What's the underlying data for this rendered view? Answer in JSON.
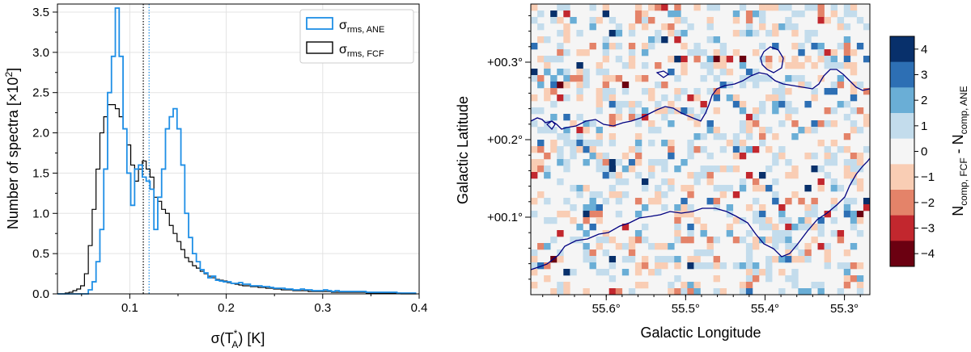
{
  "chart_data": [
    {
      "type": "histogram",
      "title": "",
      "xlabel": "σ(T",
      "xlabel_sub": "A",
      "xlabel_sup": "*",
      "xlabel_unit": ") [K]",
      "ylabel": "Number of spectra [×10",
      "ylabel_sup": "2",
      "ylabel_end": "]",
      "xlim": [
        0.025,
        0.4
      ],
      "ylim": [
        0,
        3.6
      ],
      "xticks": [
        0.1,
        0.2,
        0.3,
        0.4
      ],
      "xtick_labels": [
        "0.1",
        "0.2",
        "0.3",
        "0.4"
      ],
      "yticks": [
        0.0,
        0.5,
        1.0,
        1.5,
        2.0,
        2.5,
        3.0,
        3.5
      ],
      "ytick_labels": [
        "0.0",
        "0.5",
        "1.0",
        "1.5",
        "2.0",
        "2.5",
        "3.0",
        "3.5"
      ],
      "grid": true,
      "legend_position": "top-right",
      "series": [
        {
          "name": "σ",
          "name_sub": "rms, ANE",
          "color": "#1f8fe6",
          "step_start": 0.025,
          "step_width": 0.004,
          "values": [
            0,
            0,
            0,
            0,
            0,
            0,
            0,
            0,
            0.05,
            0.15,
            0.4,
            0.8,
            1.55,
            2.5,
            2.95,
            3.55,
            2.95,
            2.05,
            1.5,
            1.1,
            1.55,
            1.6,
            1.45,
            1.4,
            1.3,
            0.8,
            1.2,
            1.55,
            2.05,
            2.2,
            2.3,
            2.05,
            1.6,
            1.0,
            0.7,
            0.5,
            0.4,
            0.3,
            0.26,
            0.2,
            0.22,
            0.17,
            0.16,
            0.15,
            0.15,
            0.13,
            0.13,
            0.14,
            0.12,
            0.12,
            0.1,
            0.1,
            0.1,
            0.09,
            0.09,
            0.08,
            0.07,
            0.07,
            0.07,
            0.06,
            0.06,
            0.05,
            0.05,
            0.06,
            0.05,
            0.05,
            0.04,
            0.04,
            0.04,
            0.05,
            0.04,
            0.03,
            0.04,
            0.03,
            0.03,
            0.03,
            0.03,
            0.03,
            0.03,
            0.03,
            0.02,
            0.02,
            0.02,
            0.02,
            0.02,
            0.02,
            0.02,
            0.02,
            0.01,
            0.01,
            0.01,
            0.01,
            0.01
          ]
        },
        {
          "name": "σ",
          "name_sub": "rms, FCF",
          "color": "#000000",
          "step_start": 0.025,
          "step_width": 0.004,
          "values": [
            0,
            0,
            0.01,
            0.02,
            0.04,
            0.06,
            0.1,
            0.25,
            0.6,
            1.05,
            1.55,
            2.0,
            2.2,
            2.35,
            2.35,
            2.3,
            2.2,
            2.05,
            1.85,
            1.6,
            1.4,
            1.55,
            1.65,
            1.55,
            1.45,
            1.2,
            1.15,
            1.05,
            1.0,
            0.85,
            0.75,
            0.65,
            0.55,
            0.45,
            0.4,
            0.35,
            0.32,
            0.28,
            0.25,
            0.22,
            0.2,
            0.18,
            0.17,
            0.16,
            0.14,
            0.13,
            0.12,
            0.11,
            0.1,
            0.1,
            0.09,
            0.09,
            0.08,
            0.08,
            0.07,
            0.07,
            0.06,
            0.06,
            0.05,
            0.05,
            0.05,
            0.04,
            0.04,
            0.04,
            0.04,
            0.03,
            0.03,
            0.03,
            0.03,
            0.03,
            0.03,
            0.02,
            0.02,
            0.02,
            0.02,
            0.02,
            0.02,
            0.02,
            0.02,
            0.02,
            0.01,
            0.01,
            0.01,
            0.01,
            0.01,
            0.01,
            0.01,
            0.01,
            0.01,
            0.0,
            0.0,
            0.0,
            0.0
          ]
        }
      ],
      "vlines": [
        {
          "x": 0.114,
          "color": "#000000",
          "style": "dotted"
        },
        {
          "x": 0.12,
          "color": "#1f8fe6",
          "style": "dotted"
        }
      ]
    },
    {
      "type": "heatmap",
      "xlabel": "Galactic Longitude",
      "ylabel": "Galactic Latitude",
      "x_reversed": true,
      "xlim": [
        55.695,
        55.268
      ],
      "ylim": [
        0.0,
        0.375
      ],
      "xticks": [
        55.6,
        55.5,
        55.4,
        55.3
      ],
      "xtick_labels": [
        "55.6°",
        "55.5°",
        "55.4°",
        "55.3°"
      ],
      "yticks": [
        0.1,
        0.2,
        0.3
      ],
      "ytick_labels": [
        "+00.1°",
        "+00.2°",
        "+00.3°"
      ],
      "grid_size": [
        52,
        45
      ],
      "colorbar": {
        "label_main": "N",
        "label_sub1": "comp, FCF",
        "label_mid": " - N",
        "label_sub2": "comp, ANE",
        "ticks": [
          4,
          3,
          2,
          1,
          0,
          -1,
          -2,
          -3,
          -4
        ],
        "tick_labels": [
          "4",
          "3",
          "2",
          "1",
          "0",
          "−1",
          "−2",
          "−3",
          "−4"
        ],
        "colors": {
          "4": "#08306b",
          "3": "#2d6fb4",
          "2": "#6aaed6",
          "1": "#c3dcec",
          "0": "#f5f5f5",
          "-1": "#f9cdb4",
          "-2": "#e48369",
          "-3": "#c2272e",
          "-4": "#6b0011"
        }
      },
      "contour_color": "#000080"
    }
  ]
}
